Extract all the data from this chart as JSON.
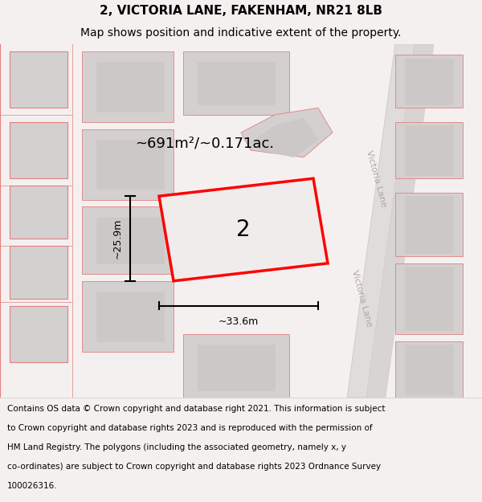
{
  "title_line1": "2, VICTORIA LANE, FAKENHAM, NR21 8LB",
  "title_line2": "Map shows position and indicative extent of the property.",
  "area_label": "~691m²/~0.171ac.",
  "number_label": "2",
  "width_label": "~33.6m",
  "height_label": "~25.9m",
  "street_label": "Victoria Lane",
  "footer_lines": [
    "Contains OS data © Crown copyright and database right 2021. This information is subject",
    "to Crown copyright and database rights 2023 and is reproduced with the permission of",
    "HM Land Registry. The polygons (including the associated geometry, namely x, y",
    "co-ordinates) are subject to Crown copyright and database rights 2023 Ordnance Survey",
    "100026316."
  ],
  "bg_color": "#f5f0f0",
  "map_bg": "#f8f5f5",
  "plot_color_fill": "#f0ecec",
  "plot_color_edge": "#ff0000",
  "building_fill": "#d4d0d0",
  "building_fill2": "#ccc8c8",
  "building_edge": "#e08080",
  "building_edge2": "#d0c8c8",
  "road_color1": "#e0dcdc",
  "road_color2": "#d8d4d4",
  "title_fontsize": 11,
  "subtitle_fontsize": 10,
  "footer_fontsize": 7.5,
  "area_fontsize": 13,
  "number_fontsize": 20,
  "dim_fontsize": 9,
  "street_fontsize": 8
}
